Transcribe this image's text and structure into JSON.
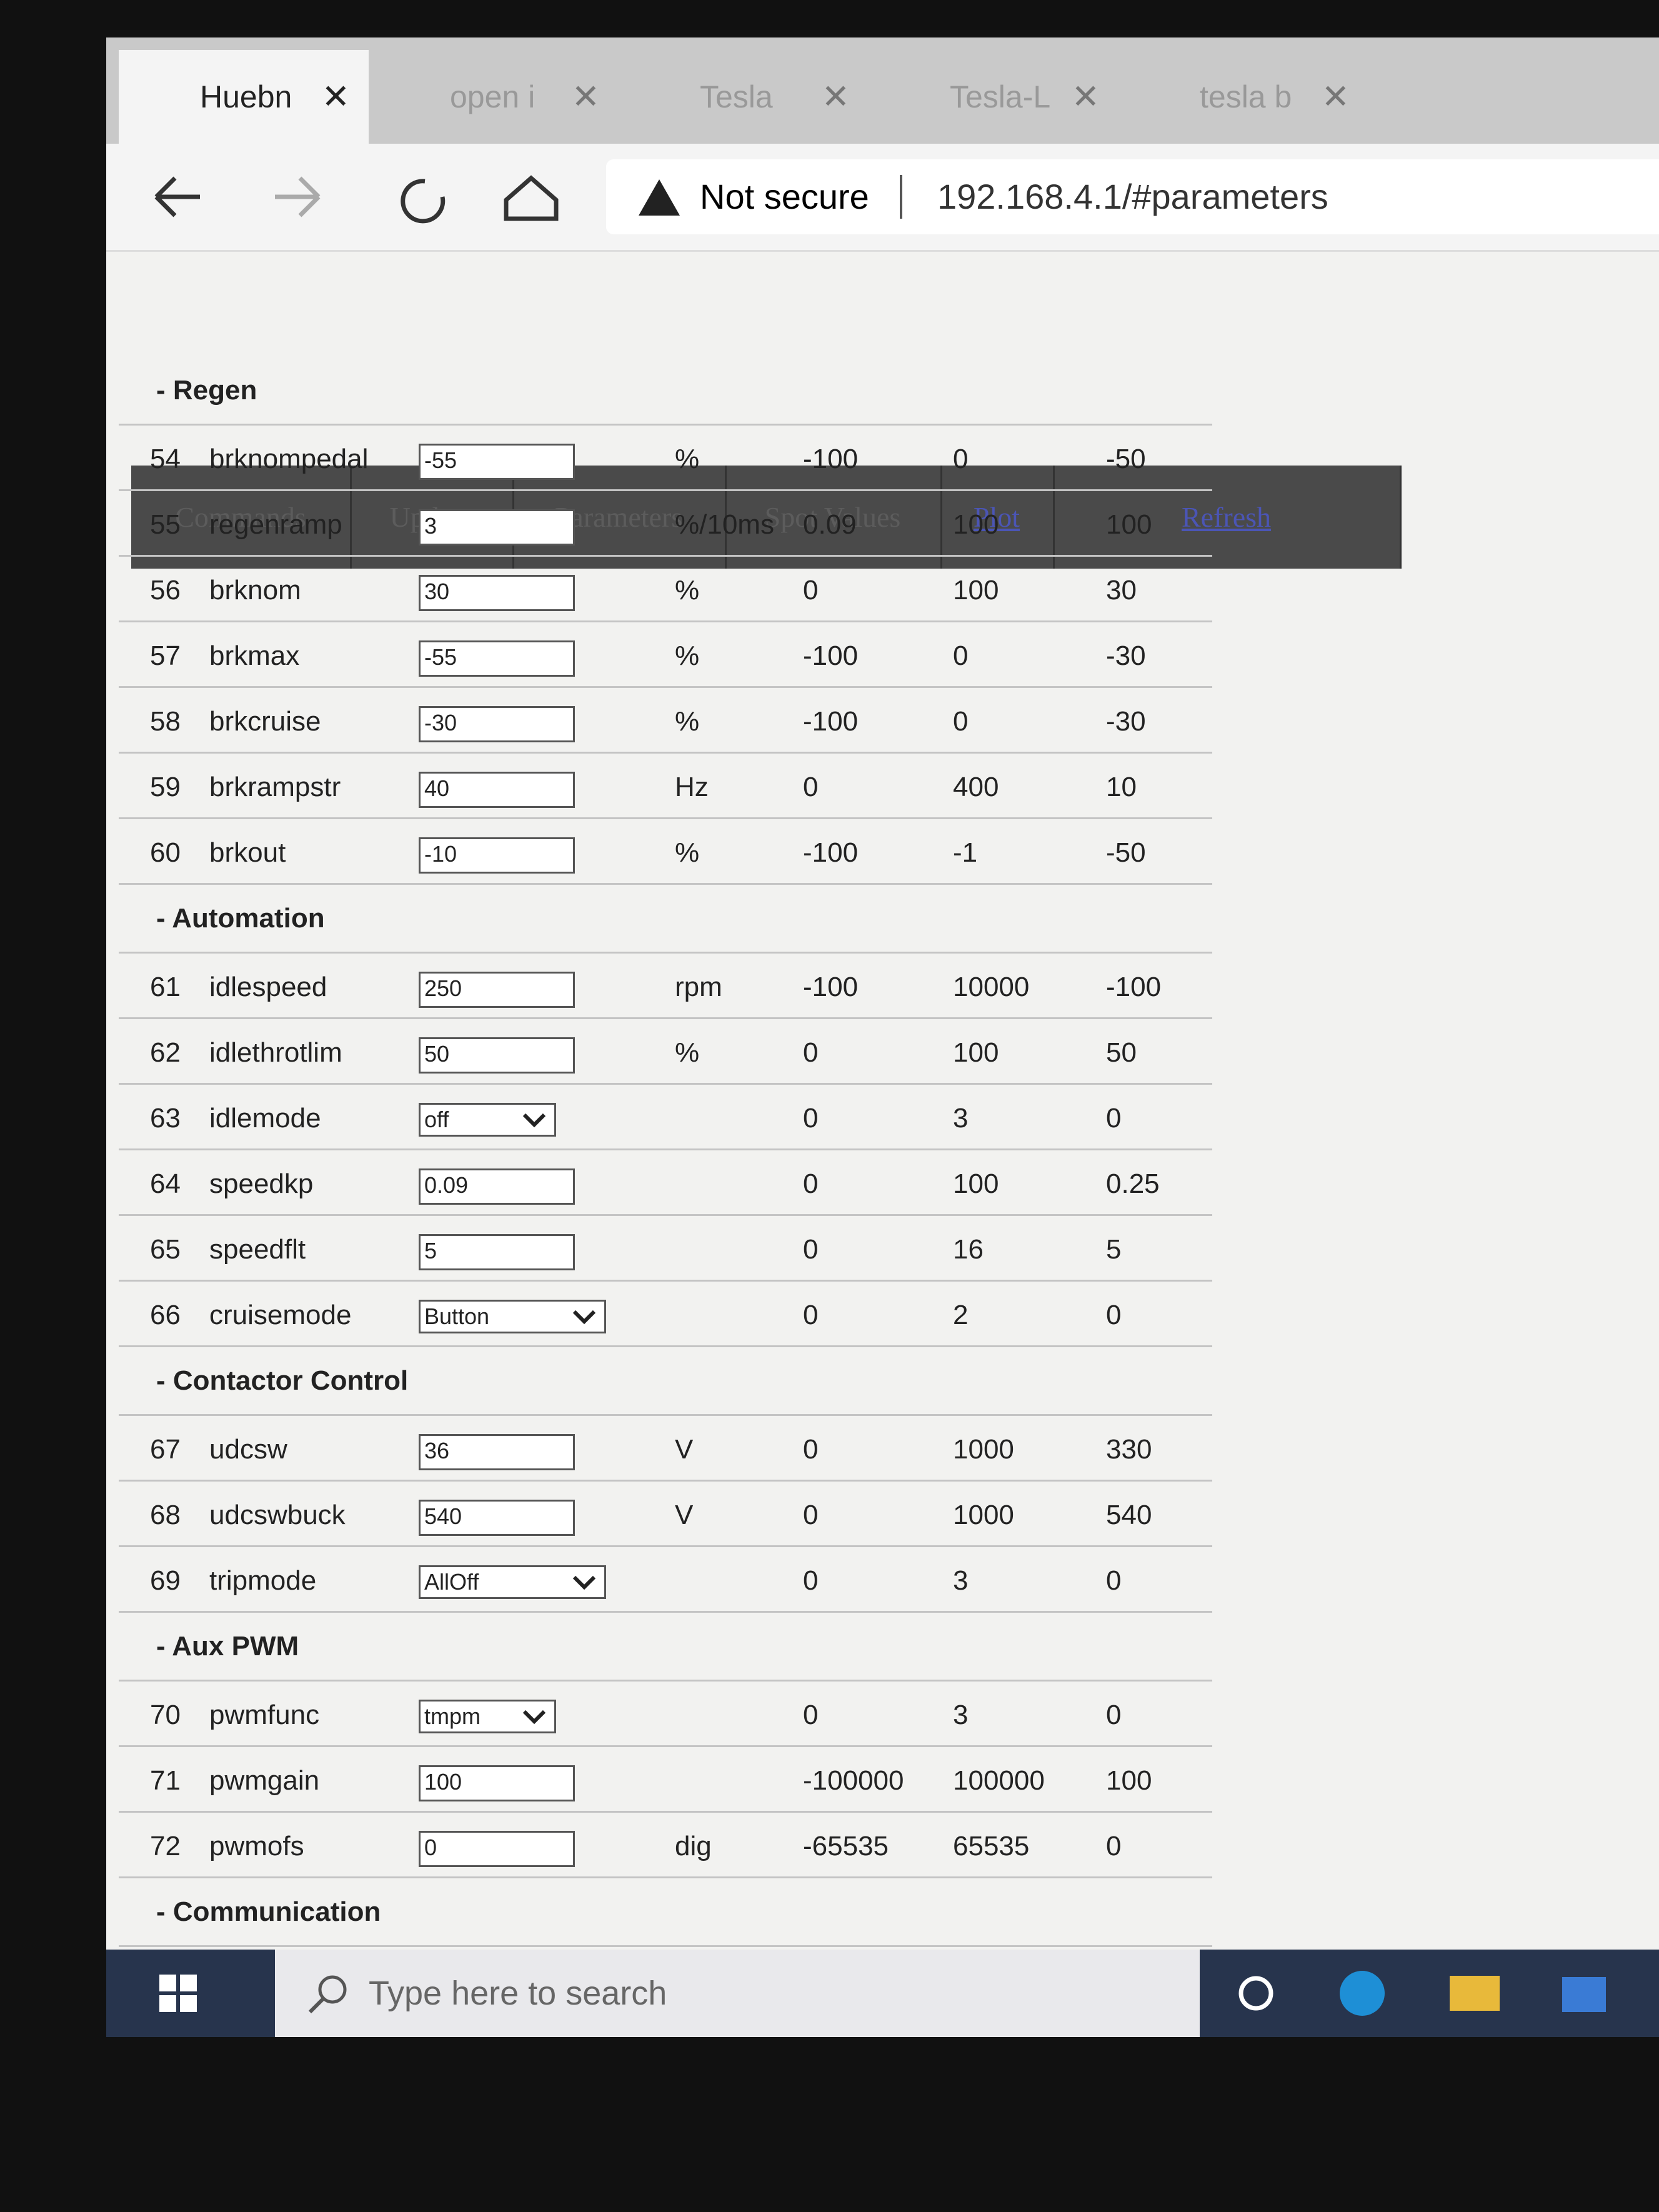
{
  "browser": {
    "tabs": [
      "Huebn",
      "open i",
      "Tesla",
      "Tesla-L",
      "tesla b"
    ],
    "security": "Not secure",
    "url": "192.168.4.1/#parameters"
  },
  "menu": [
    "Commands",
    "Update",
    "Parameters",
    "Spot Values",
    "Plot",
    "Refresh"
  ],
  "groups": [
    {
      "title": "- Regen",
      "rows": [
        {
          "num": "54",
          "name": "brknompedal",
          "value": "-55",
          "unit": "%",
          "min": "-100",
          "max": "0",
          "default": "-50"
        },
        {
          "num": "55",
          "name": "regenramp",
          "value": "3",
          "unit": "%/10ms",
          "min": "0.09",
          "max": "100",
          "default": "100"
        },
        {
          "num": "56",
          "name": "brknom",
          "value": "30",
          "unit": "%",
          "min": "0",
          "max": "100",
          "default": "30"
        },
        {
          "num": "57",
          "name": "brkmax",
          "value": "-55",
          "unit": "%",
          "min": "-100",
          "max": "0",
          "default": "-30"
        },
        {
          "num": "58",
          "name": "brkcruise",
          "value": "-30",
          "unit": "%",
          "min": "-100",
          "max": "0",
          "default": "-30"
        },
        {
          "num": "59",
          "name": "brkrampstr",
          "value": "40",
          "unit": "Hz",
          "min": "0",
          "max": "400",
          "default": "10"
        },
        {
          "num": "60",
          "name": "brkout",
          "value": "-10",
          "unit": "%",
          "min": "-100",
          "max": "-1",
          "default": "-50"
        }
      ]
    },
    {
      "title": "- Automation",
      "rows": [
        {
          "num": "61",
          "name": "idlespeed",
          "value": "250",
          "unit": "rpm",
          "min": "-100",
          "max": "10000",
          "default": "-100"
        },
        {
          "num": "62",
          "name": "idlethrotlim",
          "value": "50",
          "unit": "%",
          "min": "0",
          "max": "100",
          "default": "50"
        },
        {
          "num": "63",
          "name": "idlemode",
          "value": "off",
          "select": true,
          "min": "0",
          "max": "3",
          "default": "0"
        },
        {
          "num": "64",
          "name": "speedkp",
          "value": "0.09",
          "min": "0",
          "max": "100",
          "default": "0.25"
        },
        {
          "num": "65",
          "name": "speedflt",
          "value": "5",
          "min": "0",
          "max": "16",
          "default": "5"
        },
        {
          "num": "66",
          "name": "cruisemode",
          "value": "Button",
          "select": true,
          "min": "0",
          "max": "2",
          "default": "0"
        }
      ]
    },
    {
      "title": "- Contactor Control",
      "rows": [
        {
          "num": "67",
          "name": "udcsw",
          "value": "36",
          "unit": "V",
          "min": "0",
          "max": "1000",
          "default": "330"
        },
        {
          "num": "68",
          "name": "udcswbuck",
          "value": "540",
          "unit": "V",
          "min": "0",
          "max": "1000",
          "default": "540"
        },
        {
          "num": "69",
          "name": "tripmode",
          "value": "AllOff",
          "select": true,
          "min": "0",
          "max": "3",
          "default": "0"
        }
      ]
    },
    {
      "title": "- Aux PWM",
      "rows": [
        {
          "num": "70",
          "name": "pwmfunc",
          "value": "tmpm",
          "select": true,
          "min": "0",
          "max": "3",
          "default": "0"
        },
        {
          "num": "71",
          "name": "pwmgain",
          "value": "100",
          "min": "-100000",
          "max": "100000",
          "default": "100"
        },
        {
          "num": "72",
          "name": "pwmofs",
          "value": "0",
          "unit": "dig",
          "min": "-65535",
          "max": "65535",
          "default": "0"
        }
      ]
    },
    {
      "title": "- Communication",
      "rows": []
    }
  ],
  "taskbar": {
    "search": "Type here to search"
  }
}
